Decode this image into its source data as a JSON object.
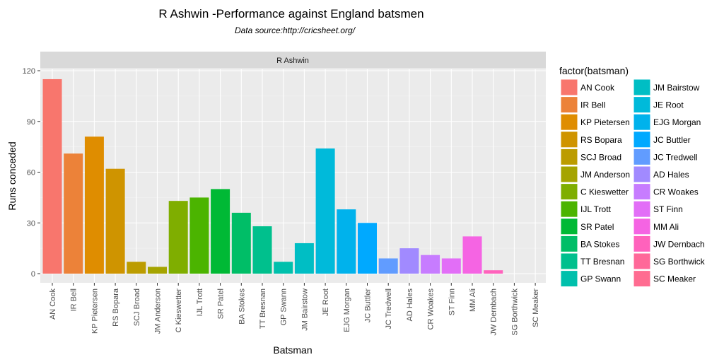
{
  "chart_data": {
    "type": "bar",
    "title": "R Ashwin -Performance against England batsmen",
    "subtitle": "Data source:http://cricsheet.org/",
    "facet_label": "R Ashwin",
    "xlabel": "Batsman",
    "ylabel": "Runs conceded",
    "ylim": [
      0,
      126
    ],
    "yticks": [
      0,
      30,
      60,
      90,
      120
    ],
    "grid": true,
    "legend": {
      "title": "factor(batsman)",
      "placement": "right",
      "columns": 2
    },
    "categories": [
      "AN Cook",
      "IR Bell",
      "KP Pietersen",
      "RS Bopara",
      "SCJ Broad",
      "JM Anderson",
      "C Kieswetter",
      "IJL Trott",
      "SR Patel",
      "BA Stokes",
      "TT Bresnan",
      "GP Swann",
      "JM Bairstow",
      "JE Root",
      "EJG Morgan",
      "JC Buttler",
      "JC Tredwell",
      "AD Hales",
      "CR Woakes",
      "ST Finn",
      "MM Ali",
      "JW Dernbach",
      "SG Borthwick",
      "SC Meaker"
    ],
    "values": [
      115,
      71,
      81,
      62,
      7,
      4,
      43,
      45,
      50,
      36,
      28,
      7,
      18,
      74,
      38,
      30,
      9,
      15,
      11,
      9,
      22,
      2,
      0,
      0
    ],
    "colors": [
      "#F8766D",
      "#EC8239",
      "#DF8D00",
      "#CF9400",
      "#BC9C00",
      "#A5A400",
      "#7FAE00",
      "#4BB400",
      "#00B935",
      "#00BE67",
      "#00C08D",
      "#00C0AC",
      "#00BEC4",
      "#00BADA",
      "#00B2EC",
      "#00A9FF",
      "#619CFF",
      "#A18AFF",
      "#C77CFF",
      "#E26EF7",
      "#F564E3",
      "#FF62BC",
      "#FF6899",
      "#FF6C91"
    ]
  }
}
